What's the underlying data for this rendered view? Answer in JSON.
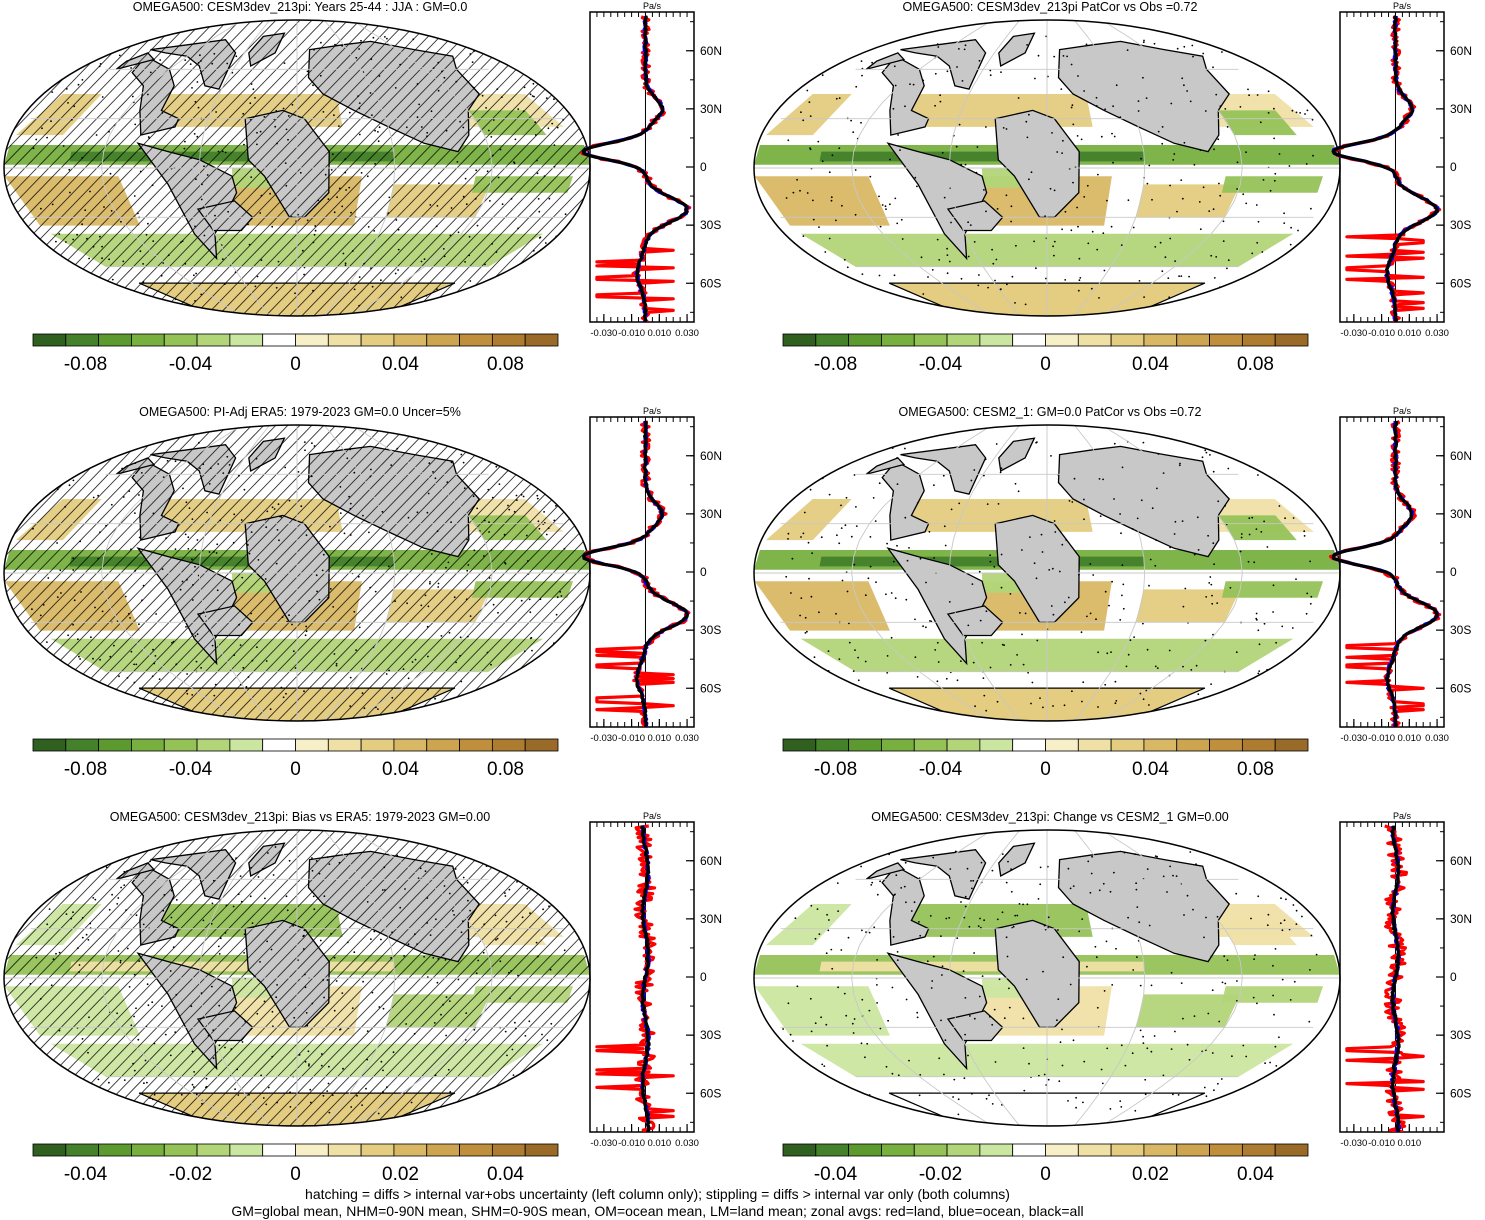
{
  "panels": [
    {
      "id": "p1",
      "title": "OMEGA500: CESM3dev_213pi: Years 25-44 : JJA : GM=0.0",
      "hatching": true,
      "colorbar": {
        "ticks": [
          "-0.08",
          "-0.04",
          "0",
          "0.04",
          "0.08"
        ],
        "tick_values": [
          -0.08,
          -0.04,
          0,
          0.04,
          0.08
        ],
        "range": [
          -0.1,
          0.1
        ]
      }
    },
    {
      "id": "p2",
      "title": "OMEGA500: CESM3dev_213pi PatCor vs Obs =0.72",
      "hatching": false,
      "colorbar": {
        "ticks": [
          "-0.08",
          "-0.04",
          "0",
          "0.04",
          "0.08"
        ],
        "tick_values": [
          -0.08,
          -0.04,
          0,
          0.04,
          0.08
        ],
        "range": [
          -0.1,
          0.1
        ]
      }
    },
    {
      "id": "p3",
      "title": "OMEGA500: PI-Adj ERA5: 1979-2023 GM=0.0 Uncer=5%",
      "hatching": true,
      "colorbar": {
        "ticks": [
          "-0.08",
          "-0.04",
          "0",
          "0.04",
          "0.08"
        ],
        "tick_values": [
          -0.08,
          -0.04,
          0,
          0.04,
          0.08
        ],
        "range": [
          -0.1,
          0.1
        ]
      }
    },
    {
      "id": "p4",
      "title": "OMEGA500: CESM2_1: GM=0.0 PatCor vs Obs =0.72",
      "hatching": false,
      "colorbar": {
        "ticks": [
          "-0.08",
          "-0.04",
          "0",
          "0.04",
          "0.08"
        ],
        "tick_values": [
          -0.08,
          -0.04,
          0,
          0.04,
          0.08
        ],
        "range": [
          -0.1,
          0.1
        ]
      }
    },
    {
      "id": "p5",
      "title": "OMEGA500: CESM3dev_213pi: Bias vs ERA5: 1979-2023 GM=0.00",
      "hatching": true,
      "colorbar": {
        "ticks": [
          "-0.04",
          "-0.02",
          "0",
          "0.02",
          "0.04"
        ],
        "tick_values": [
          -0.04,
          -0.02,
          0,
          0.02,
          0.04
        ],
        "range": [
          -0.05,
          0.05
        ]
      }
    },
    {
      "id": "p6",
      "title": "OMEGA500: CESM3dev_213pi: Change vs CESM2_1 GM=0.00",
      "hatching": false,
      "colorbar": {
        "ticks": [
          "-0.04",
          "-0.02",
          "0",
          "0.02",
          "0.04"
        ],
        "tick_values": [
          -0.04,
          -0.02,
          0,
          0.02,
          0.04
        ],
        "range": [
          -0.05,
          0.05
        ]
      }
    }
  ],
  "profile": {
    "unit": "Pa/s",
    "lat_labels": [
      "60N",
      "30N",
      "0",
      "30S",
      "60S"
    ],
    "lat_values": [
      60,
      30,
      0,
      -30,
      -60
    ],
    "x_ticks_wide": [
      "-0.030",
      "-0.010",
      "0.010",
      "0.030"
    ],
    "x_ticks_narrow": [
      "-0.030",
      "-0.010",
      "0.010"
    ],
    "x_tick_values": [
      -0.03,
      -0.01,
      0.01,
      0.03
    ],
    "legend": {
      "land": "red",
      "ocean": "blue",
      "all": "black"
    }
  },
  "colors": {
    "land_mask": "#c8c8c8",
    "profile_land": "#ff0000",
    "profile_ocean": "#0000ff",
    "profile_all": "#000000",
    "colorbar": [
      "#2f6020",
      "#45802a",
      "#5c9a30",
      "#78b040",
      "#95c257",
      "#b2d579",
      "#cbe6a0",
      "#ffffff",
      "#f7efc8",
      "#efe0a5",
      "#e4cc80",
      "#d9b865",
      "#cda450",
      "#bf8f3d",
      "#ae7c30",
      "#9a6a28"
    ]
  },
  "footer": {
    "line1": "hatching = diffs > internal var+obs uncertainty (left column only); stippling = diffs > internal var only (both columns)",
    "line2": "GM=global mean, NHM=0-90N mean, SHM=0-90S mean, OM=ocean mean, LM=land mean; zonal avgs: red=land, blue=ocean, black=all"
  },
  "chart_data": [
    {
      "type": "heatmap",
      "title": "OMEGA500: CESM3dev_213pi: Years 25-44 : JJA : GM=0.0",
      "units": "Pa/s",
      "colorbar_ticks": [
        -0.08,
        -0.04,
        0,
        0.04,
        0.08
      ],
      "zonal_profile_series": [
        "land",
        "ocean",
        "all"
      ]
    },
    {
      "type": "heatmap",
      "title": "OMEGA500: CESM3dev_213pi PatCor vs Obs =0.72",
      "units": "Pa/s",
      "colorbar_ticks": [
        -0.08,
        -0.04,
        0,
        0.04,
        0.08
      ],
      "zonal_profile_series": [
        "land",
        "ocean",
        "all"
      ]
    },
    {
      "type": "heatmap",
      "title": "OMEGA500: PI-Adj ERA5: 1979-2023 GM=0.0 Uncer=5%",
      "units": "Pa/s",
      "colorbar_ticks": [
        -0.08,
        -0.04,
        0,
        0.04,
        0.08
      ],
      "zonal_profile_series": [
        "land",
        "ocean",
        "all"
      ]
    },
    {
      "type": "heatmap",
      "title": "OMEGA500: CESM2_1: GM=0.0 PatCor vs Obs =0.72",
      "units": "Pa/s",
      "colorbar_ticks": [
        -0.08,
        -0.04,
        0,
        0.04,
        0.08
      ],
      "zonal_profile_series": [
        "land",
        "ocean",
        "all"
      ]
    },
    {
      "type": "heatmap",
      "title": "OMEGA500: CESM3dev_213pi: Bias vs ERA5: 1979-2023 GM=0.00",
      "units": "Pa/s",
      "colorbar_ticks": [
        -0.04,
        -0.02,
        0,
        0.02,
        0.04
      ],
      "zonal_profile_series": [
        "land",
        "ocean",
        "all"
      ]
    },
    {
      "type": "heatmap",
      "title": "OMEGA500: CESM3dev_213pi: Change vs CESM2_1 GM=0.00",
      "units": "Pa/s",
      "colorbar_ticks": [
        -0.04,
        -0.02,
        0,
        0.02,
        0.04
      ],
      "zonal_profile_series": [
        "land",
        "ocean",
        "all"
      ]
    }
  ]
}
